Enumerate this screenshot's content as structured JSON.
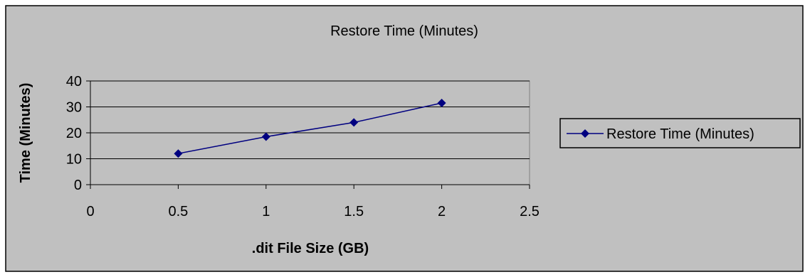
{
  "chart_data": {
    "type": "line",
    "title": "Restore Time (Minutes)",
    "xlabel": ".dit File Size (GB)",
    "ylabel": "Time (Minutes)",
    "xlim": [
      0,
      2.5
    ],
    "ylim": [
      0,
      40
    ],
    "x_ticks": [
      "0",
      "0.5",
      "1",
      "1.5",
      "2",
      "2.5"
    ],
    "y_ticks": [
      "0",
      "10",
      "20",
      "30",
      "40"
    ],
    "grid": "horizontal",
    "legend": "right",
    "series": [
      {
        "name": "Restore Time (Minutes)",
        "color": "#000080",
        "marker": "diamond",
        "x": [
          0.5,
          1,
          1.5,
          2
        ],
        "y": [
          12,
          18.5,
          24,
          31.5
        ]
      }
    ],
    "colors": {
      "chart_area": "#c0c0c0",
      "plot_area": "#c0c0c0",
      "gridline": "#000000",
      "border": "#000000"
    }
  }
}
